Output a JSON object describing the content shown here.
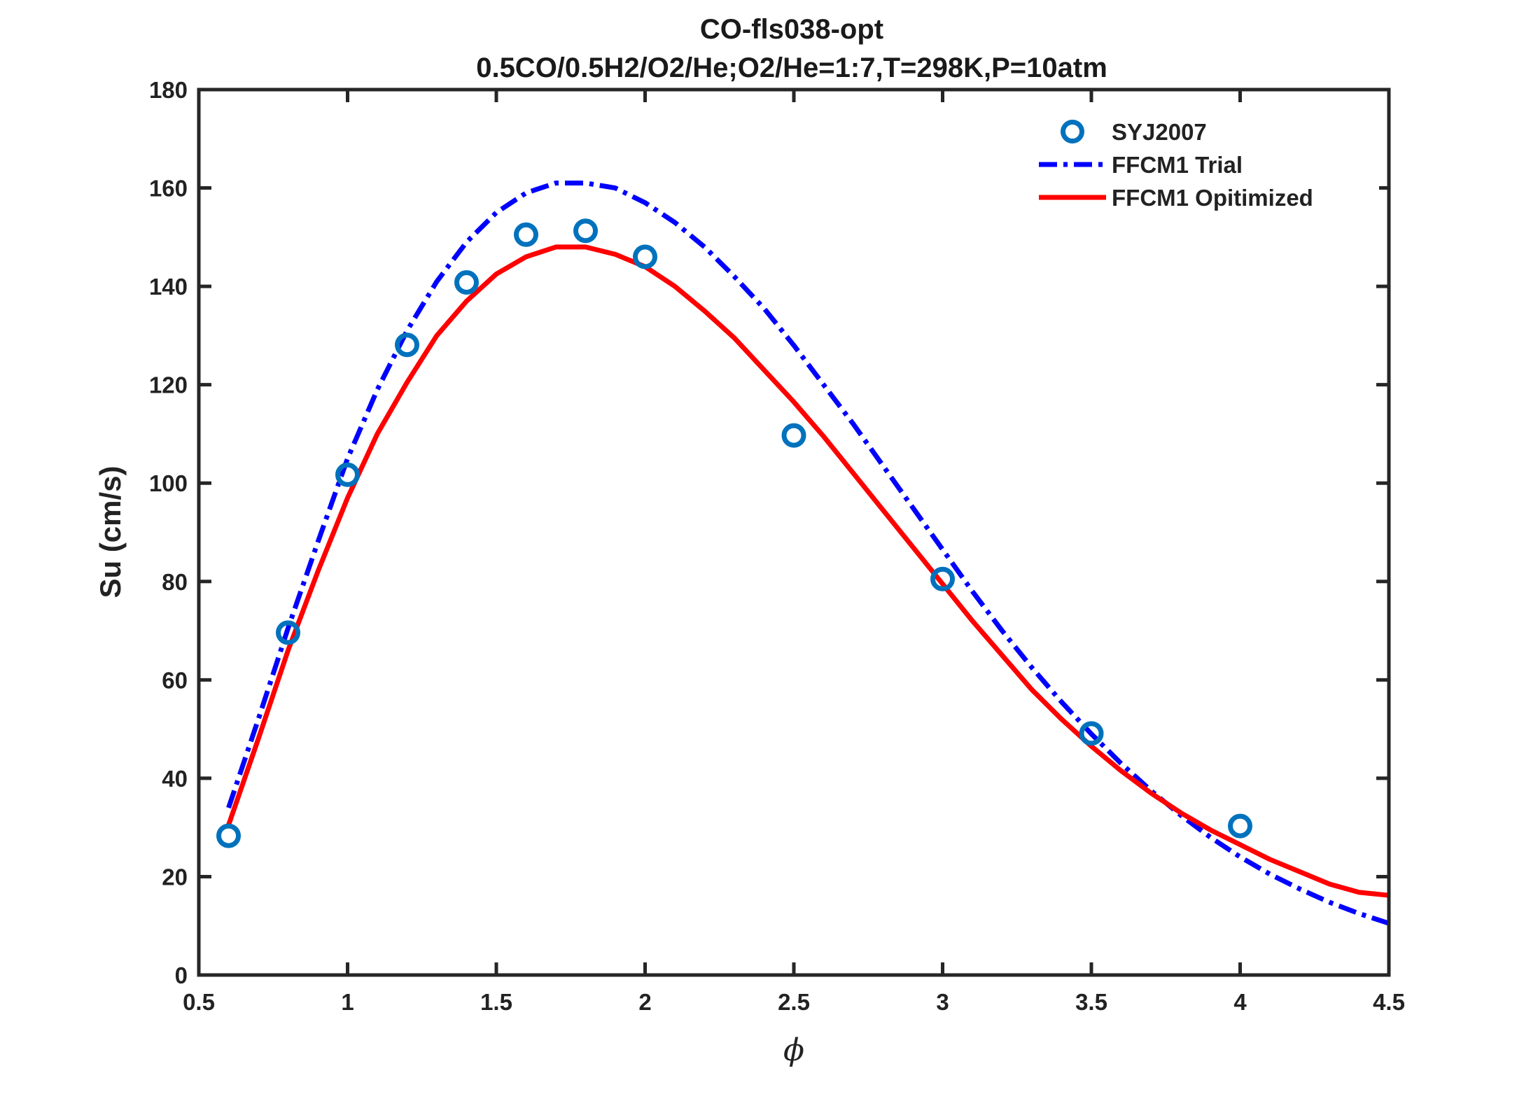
{
  "chart_data": {
    "type": "line",
    "title": "CO-fls038-opt",
    "subtitle": "0.5CO/0.5H2/O2/He;O2/He=1:7,T=298K,P=10atm",
    "xlabel": "ϕ",
    "ylabel": "Su (cm/s)",
    "xlim": [
      0.5,
      4.5
    ],
    "ylim": [
      0,
      180
    ],
    "xticks": [
      0.5,
      1,
      1.5,
      2,
      2.5,
      3,
      3.5,
      4,
      4.5
    ],
    "xtick_labels": [
      "0.5",
      "1",
      "1.5",
      "2",
      "2.5",
      "3",
      "3.5",
      "4",
      "4.5"
    ],
    "yticks": [
      0,
      20,
      40,
      60,
      80,
      100,
      120,
      140,
      160,
      180
    ],
    "ytick_labels": [
      "0",
      "20",
      "40",
      "60",
      "80",
      "100",
      "120",
      "140",
      "160",
      "180"
    ],
    "grid": false,
    "legend_position": "top-right",
    "series": [
      {
        "name": "SYJ2007",
        "style": "markers-circle",
        "color": "#0072BD",
        "x": [
          0.6,
          0.8,
          1.0,
          1.2,
          1.4,
          1.6,
          1.8,
          2.0,
          2.5,
          3.0,
          3.5,
          4.0
        ],
        "y": [
          28.3,
          69.6,
          101.7,
          128.1,
          140.8,
          150.5,
          151.3,
          146.0,
          109.7,
          80.5,
          49.1,
          30.3
        ]
      },
      {
        "name": "FFCM1 Trial",
        "style": "dash-dot",
        "color": "#0000FF",
        "x": [
          0.6,
          0.7,
          0.8,
          0.9,
          1.0,
          1.1,
          1.2,
          1.3,
          1.4,
          1.5,
          1.6,
          1.7,
          1.8,
          1.9,
          2.0,
          2.1,
          2.2,
          2.3,
          2.4,
          2.5,
          2.6,
          2.7,
          2.8,
          2.9,
          3.0,
          3.1,
          3.2,
          3.3,
          3.4,
          3.5,
          3.6,
          3.7,
          3.8,
          3.9,
          4.0,
          4.1,
          4.2,
          4.3,
          4.4,
          4.5
        ],
        "y": [
          34.0,
          52.0,
          70.5,
          88.0,
          105.0,
          119.0,
          131.0,
          141.0,
          149.0,
          155.0,
          159.0,
          161.0,
          161.0,
          160.0,
          157.0,
          153.0,
          148.0,
          142.0,
          135.5,
          128.0,
          120.0,
          112.0,
          103.5,
          95.0,
          86.5,
          78.0,
          70.0,
          62.5,
          55.5,
          49.0,
          43.0,
          37.5,
          32.5,
          28.0,
          24.0,
          20.5,
          17.5,
          14.8,
          12.5,
          10.5
        ]
      },
      {
        "name": "FFCM1 Opitimized",
        "style": "solid",
        "color": "#FF0000",
        "x": [
          0.6,
          0.7,
          0.8,
          0.9,
          1.0,
          1.1,
          1.2,
          1.3,
          1.4,
          1.5,
          1.6,
          1.7,
          1.8,
          1.9,
          2.0,
          2.1,
          2.2,
          2.3,
          2.4,
          2.5,
          2.6,
          2.7,
          2.8,
          2.9,
          3.0,
          3.1,
          3.2,
          3.3,
          3.4,
          3.5,
          3.6,
          3.7,
          3.8,
          3.9,
          4.0,
          4.1,
          4.2,
          4.3,
          4.4,
          4.5
        ],
        "y": [
          30.5,
          48.0,
          66.0,
          82.0,
          97.0,
          110.0,
          120.5,
          130.0,
          137.0,
          142.5,
          146.0,
          148.0,
          148.0,
          146.5,
          144.0,
          140.0,
          135.0,
          129.5,
          123.0,
          116.5,
          109.5,
          102.0,
          94.5,
          87.0,
          79.5,
          72.0,
          65.0,
          58.0,
          52.0,
          46.5,
          41.5,
          37.0,
          33.0,
          29.5,
          26.5,
          23.5,
          21.0,
          18.5,
          16.8,
          16.2
        ]
      }
    ]
  }
}
